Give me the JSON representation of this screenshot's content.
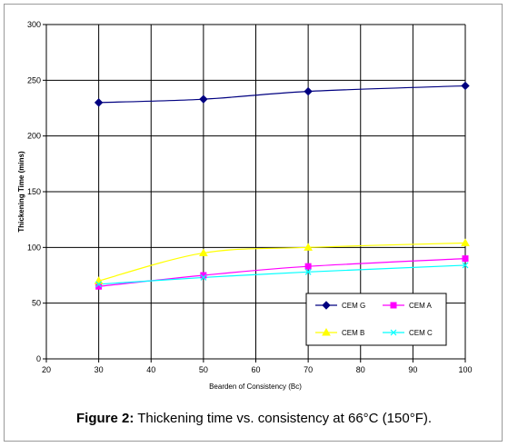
{
  "chart_data": {
    "type": "line",
    "x": [
      30,
      50,
      70,
      100
    ],
    "xlim": [
      20,
      100
    ],
    "ylim": [
      0,
      300
    ],
    "x_ticks": [
      20,
      30,
      40,
      50,
      60,
      70,
      80,
      90,
      100
    ],
    "y_ticks": [
      0,
      50,
      100,
      150,
      200,
      250,
      300
    ],
    "xlabel": "Bearden of Consistency (Bc)",
    "ylabel": "Thickening Time (mins)",
    "grid": true,
    "smooth": true,
    "legend_position": "bottom-right",
    "series": [
      {
        "name": "CEM G",
        "values": [
          230,
          233,
          240,
          245
        ],
        "color": "#000080",
        "marker": "diamond"
      },
      {
        "name": "CEM A",
        "values": [
          65,
          75,
          83,
          90
        ],
        "color": "#ff00ff",
        "marker": "square"
      },
      {
        "name": "CEM B",
        "values": [
          70,
          95,
          100,
          104
        ],
        "color": "#ffff00",
        "marker": "triangle"
      },
      {
        "name": "CEM C",
        "values": [
          67,
          73,
          78,
          84
        ],
        "color": "#00ffff",
        "marker": "x"
      }
    ]
  },
  "caption": {
    "label": "Figure 2:",
    "text": " Thickening time vs. consistency at 66°C (150°F)."
  }
}
